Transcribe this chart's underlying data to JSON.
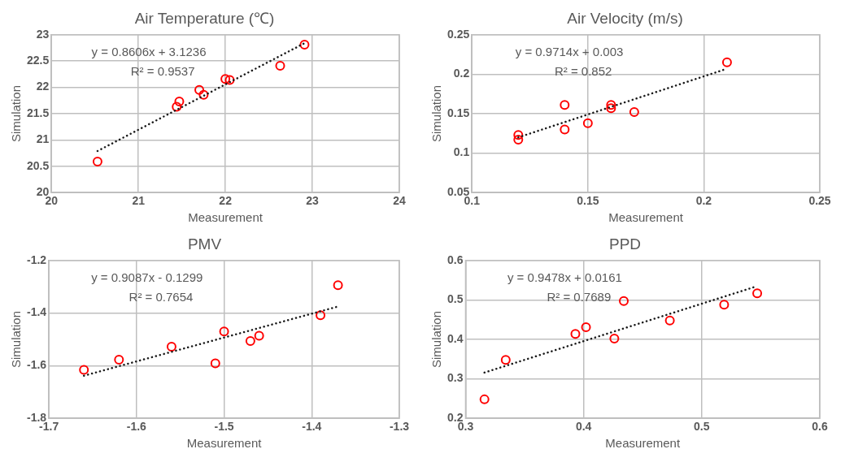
{
  "chart_data": [
    {
      "type": "scatter",
      "title": "Air Temperature (℃)",
      "xlabel": "Measurement",
      "ylabel": "Simulation",
      "xlim": [
        20,
        24
      ],
      "xticks": [
        20,
        21,
        22,
        23,
        24
      ],
      "ylim": [
        20,
        23
      ],
      "yticks": [
        20,
        20.5,
        21,
        21.5,
        22,
        22.5,
        23
      ],
      "grid": true,
      "marker": "circle",
      "annotations": [
        "y = 0.8606x + 3.1236",
        "R² = 0.9537"
      ],
      "series": [
        {
          "type": "scatter",
          "color": "#ff0000",
          "x": [
            20.53,
            21.44,
            21.47,
            21.7,
            21.75,
            22.0,
            22.05,
            22.63,
            22.91
          ],
          "values": [
            20.59,
            21.63,
            21.73,
            21.95,
            21.86,
            22.16,
            22.14,
            22.41,
            22.81
          ]
        },
        {
          "type": "line",
          "color": "#1a1a1a",
          "line_style": "dotted",
          "marker": "none",
          "x": [
            20.53,
            22.91
          ],
          "values": [
            20.79,
            22.84
          ]
        }
      ]
    },
    {
      "type": "scatter",
      "title": "Air Velocity (m/s)",
      "xlabel": "Measurement",
      "ylabel": "Simulation",
      "xlim": [
        0.1,
        0.25
      ],
      "xticks": [
        0.1,
        0.15,
        0.2,
        0.25
      ],
      "ylim": [
        0.05,
        0.25
      ],
      "yticks": [
        0.05,
        0.1,
        0.15,
        0.2,
        0.25
      ],
      "grid": true,
      "marker": "circle",
      "annotations": [
        "y = 0.9714x + 0.003",
        "R² = 0.852"
      ],
      "series": [
        {
          "type": "scatter",
          "color": "#ff0000",
          "x": [
            0.12,
            0.12,
            0.14,
            0.14,
            0.15,
            0.16,
            0.16,
            0.17,
            0.21
          ],
          "values": [
            0.123,
            0.117,
            0.161,
            0.13,
            0.138,
            0.161,
            0.157,
            0.152,
            0.215
          ]
        },
        {
          "type": "line",
          "color": "#1a1a1a",
          "line_style": "dotted",
          "marker": "none",
          "x": [
            0.12,
            0.21
          ],
          "values": [
            0.12,
            0.207
          ]
        }
      ]
    },
    {
      "type": "scatter",
      "title": "PMV",
      "xlabel": "Measurement",
      "ylabel": "Simulation",
      "xlim": [
        -1.7,
        -1.3
      ],
      "xticks": [
        -1.7,
        -1.6,
        -1.5,
        -1.4,
        -1.3
      ],
      "ylim": [
        -1.8,
        -1.2
      ],
      "yticks": [
        -1.8,
        -1.6,
        -1.4,
        -1.2
      ],
      "grid": true,
      "marker": "circle",
      "annotations": [
        "y = 0.9087x - 0.1299",
        "R² = 0.7654"
      ],
      "series": [
        {
          "type": "scatter",
          "color": "#ff0000",
          "x": [
            -1.66,
            -1.62,
            -1.56,
            -1.51,
            -1.5,
            -1.47,
            -1.46,
            -1.39,
            -1.37
          ],
          "values": [
            -1.616,
            -1.577,
            -1.528,
            -1.591,
            -1.47,
            -1.506,
            -1.486,
            -1.408,
            -1.294
          ]
        },
        {
          "type": "line",
          "color": "#1a1a1a",
          "line_style": "dotted",
          "marker": "none",
          "x": [
            -1.66,
            -1.37
          ],
          "values": [
            -1.638,
            -1.375
          ]
        }
      ]
    },
    {
      "type": "scatter",
      "title": "PPD",
      "xlabel": "Measurement",
      "ylabel": "Simulation",
      "xlim": [
        0.3,
        0.6
      ],
      "xticks": [
        0.3,
        0.4,
        0.5,
        0.6
      ],
      "ylim": [
        0.2,
        0.6
      ],
      "yticks": [
        0.2,
        0.3,
        0.4,
        0.5,
        0.6
      ],
      "grid": true,
      "marker": "circle",
      "annotations": [
        "y = 0.9478x + 0.0161",
        "R² = 0.7689"
      ],
      "series": [
        {
          "type": "scatter",
          "color": "#ff0000",
          "x": [
            0.316,
            0.334,
            0.393,
            0.402,
            0.426,
            0.434,
            0.473,
            0.519,
            0.547
          ],
          "values": [
            0.248,
            0.348,
            0.414,
            0.431,
            0.402,
            0.497,
            0.448,
            0.488,
            0.517
          ]
        },
        {
          "type": "line",
          "color": "#1a1a1a",
          "line_style": "dotted",
          "marker": "none",
          "x": [
            0.316,
            0.547
          ],
          "values": [
            0.316,
            0.535
          ]
        }
      ]
    }
  ]
}
